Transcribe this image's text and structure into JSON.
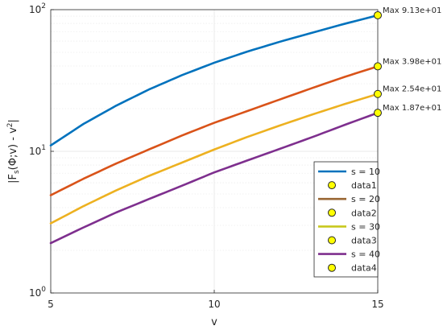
{
  "chart_data": {
    "type": "line",
    "title": "",
    "xlabel": "v",
    "ylabel_parts": {
      "a": "|F",
      "sub": "s",
      "b": "(Φ;v) - v",
      "sup": "2",
      "c": "|"
    },
    "xlim": [
      5,
      15
    ],
    "ylim": [
      1,
      100
    ],
    "yscale": "log",
    "grid": true,
    "legend_placement": "bottom-right",
    "x_ticks": [
      5,
      10,
      15
    ],
    "y_ticks": [
      {
        "value": 1,
        "mantissa": "10",
        "exponent": "0"
      },
      {
        "value": 10,
        "mantissa": "10",
        "exponent": "1"
      },
      {
        "value": 100,
        "mantissa": "10",
        "exponent": "2"
      }
    ],
    "series": [
      {
        "name": "s = 10",
        "color": "#0072BD",
        "x": [
          5,
          6,
          7,
          8,
          9,
          10,
          11,
          12,
          13,
          14,
          15
        ],
        "y": [
          11.0,
          15.6,
          21.0,
          27.3,
          34.4,
          42.2,
          50.5,
          59.3,
          68.8,
          79.6,
          91.3
        ]
      },
      {
        "name": "s = 20",
        "color": "#D95319",
        "x": [
          5,
          6,
          7,
          8,
          9,
          10,
          11,
          12,
          13,
          14,
          15
        ],
        "y": [
          4.9,
          6.4,
          8.2,
          10.3,
          12.9,
          15.9,
          19.2,
          23.2,
          28.0,
          33.6,
          39.8
        ]
      },
      {
        "name": "s = 30",
        "color": "#EDB120",
        "x": [
          5,
          6,
          7,
          8,
          9,
          10,
          11,
          12,
          13,
          14,
          15
        ],
        "y": [
          3.1,
          4.1,
          5.3,
          6.7,
          8.3,
          10.3,
          12.6,
          15.2,
          18.2,
          21.6,
          25.4
        ]
      },
      {
        "name": "s = 40",
        "color": "#7E2F8E",
        "x": [
          5,
          6,
          7,
          8,
          9,
          10,
          11,
          12,
          13,
          14,
          15
        ],
        "y": [
          2.25,
          2.9,
          3.7,
          4.6,
          5.7,
          7.1,
          8.6,
          10.4,
          12.6,
          15.4,
          18.7
        ]
      }
    ],
    "markers": [
      {
        "name": "data1",
        "x": 15,
        "y": 91.3,
        "label": "Max 9.13e+01"
      },
      {
        "name": "data2",
        "x": 15,
        "y": 39.8,
        "label": "Max 3.98e+01"
      },
      {
        "name": "data3",
        "x": 15,
        "y": 25.4,
        "label": "Max 2.54e+01"
      },
      {
        "name": "data4",
        "x": 15,
        "y": 18.7,
        "label": "Max 1.87e+01"
      }
    ],
    "marker_fill": "#FFFF00",
    "legend_entries": [
      {
        "kind": "line",
        "label": "s = 10",
        "color": "#0072BD"
      },
      {
        "kind": "marker",
        "label": "data1"
      },
      {
        "kind": "line",
        "label": "s = 20",
        "color": "#996633"
      },
      {
        "kind": "marker",
        "label": "data2"
      },
      {
        "kind": "line",
        "label": "s = 30",
        "color": "#C8C81E"
      },
      {
        "kind": "marker",
        "label": "data3"
      },
      {
        "kind": "line",
        "label": "s = 40",
        "color": "#7E2F8E"
      },
      {
        "kind": "marker",
        "label": "data4"
      }
    ]
  }
}
